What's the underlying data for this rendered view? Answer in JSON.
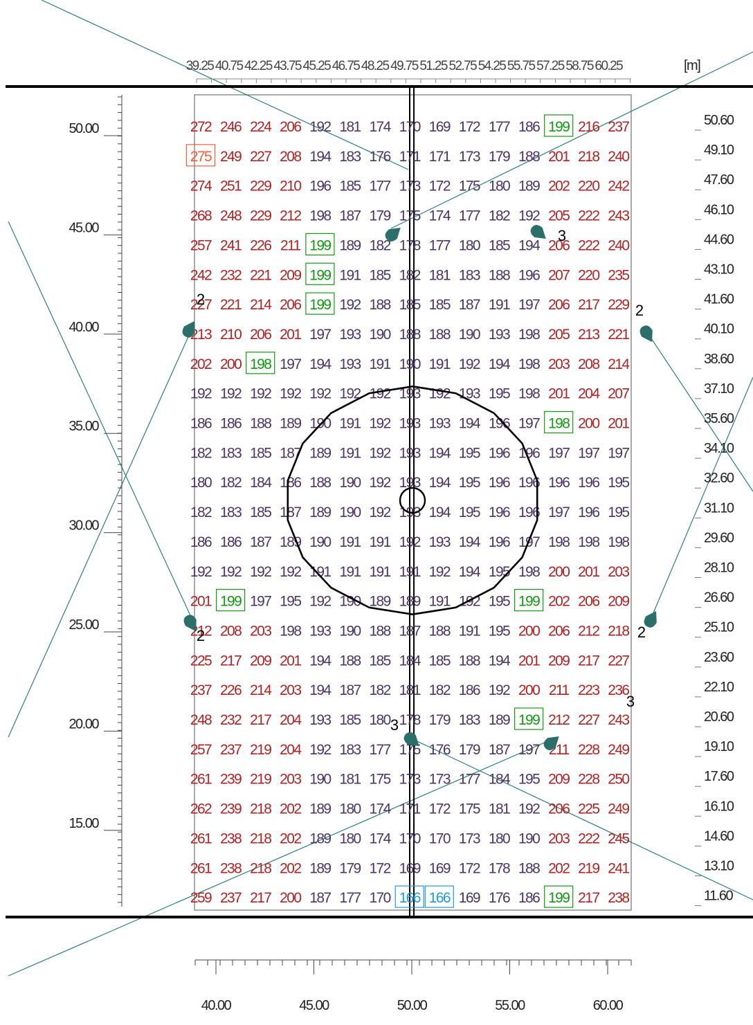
{
  "unit_label": "[m]",
  "top_scale_labels": [
    "39.25",
    "40.75",
    "42.25",
    "43.75",
    "45.25",
    "46.75",
    "48.25",
    "49.75",
    "51.25",
    "52.75",
    "54.25",
    "55.75",
    "57.25",
    "58.75",
    "60.25"
  ],
  "left_scale_labels": [
    "50.00",
    "45.00",
    "40.00",
    "35.00",
    "30.00",
    "25.00",
    "20.00",
    "15.00"
  ],
  "right_scale_labels": [
    "50.60",
    "49.10",
    "47.60",
    "46.10",
    "44.60",
    "43.10",
    "41.60",
    "40.10",
    "38.60",
    "37.10",
    "35.60",
    "34.10",
    "32.60",
    "31.10",
    "29.60",
    "28.10",
    "26.60",
    "25.10",
    "23.60",
    "22.10",
    "20.60",
    "19.10",
    "17.60",
    "16.10",
    "14.60",
    "13.10",
    "11.60"
  ],
  "bottom_scale_labels": [
    "40.00",
    "45.00",
    "50.00",
    "55.00",
    "60.00"
  ],
  "colors": {
    "high": "#b22222",
    "mid": "#4b3566",
    "max_box": "#ff5a36",
    "min_box": "#1e9be0",
    "special_box": "#119911",
    "luminaire": "#2b6f6a",
    "beam": "#2b7f7a"
  },
  "luminaire_labels": [
    {
      "id": "lum-top-center",
      "label": ""
    },
    {
      "id": "lum-top-right",
      "label": "3"
    },
    {
      "id": "lum-left-upper",
      "label": "2"
    },
    {
      "id": "lum-right-upper",
      "label": "2"
    },
    {
      "id": "lum-left-lower",
      "label": "2"
    },
    {
      "id": "lum-right-lower",
      "label": "2"
    },
    {
      "id": "lum-bottom-center",
      "label": "3"
    },
    {
      "id": "lum-bottom-right",
      "label": "3"
    }
  ],
  "grid": {
    "rows": [
      [
        272,
        246,
        224,
        206,
        192,
        181,
        174,
        170,
        169,
        172,
        177,
        186,
        199,
        216,
        237
      ],
      [
        275,
        249,
        227,
        208,
        194,
        183,
        176,
        171,
        171,
        173,
        179,
        188,
        201,
        218,
        240
      ],
      [
        274,
        251,
        229,
        210,
        196,
        185,
        177,
        173,
        172,
        175,
        180,
        189,
        202,
        220,
        242
      ],
      [
        268,
        248,
        229,
        212,
        198,
        187,
        179,
        175,
        174,
        177,
        182,
        192,
        205,
        222,
        243
      ],
      [
        257,
        241,
        226,
        211,
        199,
        189,
        182,
        178,
        177,
        180,
        185,
        194,
        206,
        222,
        240
      ],
      [
        242,
        232,
        221,
        209,
        199,
        191,
        185,
        182,
        181,
        183,
        188,
        196,
        207,
        220,
        235
      ],
      [
        227,
        221,
        214,
        206,
        199,
        192,
        188,
        185,
        185,
        187,
        191,
        197,
        206,
        217,
        229
      ],
      [
        213,
        210,
        206,
        201,
        197,
        193,
        190,
        188,
        188,
        190,
        193,
        198,
        205,
        213,
        221
      ],
      [
        202,
        200,
        198,
        197,
        194,
        193,
        191,
        190,
        191,
        192,
        194,
        198,
        203,
        208,
        214
      ],
      [
        192,
        192,
        192,
        192,
        192,
        192,
        192,
        193,
        192,
        193,
        195,
        198,
        201,
        204,
        207
      ],
      [
        186,
        186,
        188,
        189,
        190,
        191,
        192,
        193,
        193,
        194,
        196,
        197,
        198,
        200,
        201
      ],
      [
        182,
        183,
        185,
        187,
        189,
        191,
        192,
        193,
        194,
        195,
        196,
        196,
        197,
        197,
        197
      ],
      [
        180,
        182,
        184,
        186,
        188,
        190,
        192,
        193,
        194,
        195,
        196,
        196,
        196,
        196,
        195
      ],
      [
        182,
        183,
        185,
        187,
        189,
        190,
        192,
        193,
        194,
        195,
        196,
        196,
        197,
        196,
        195
      ],
      [
        186,
        186,
        187,
        189,
        190,
        191,
        191,
        192,
        193,
        194,
        196,
        197,
        198,
        198,
        198
      ],
      [
        192,
        192,
        192,
        192,
        191,
        191,
        191,
        191,
        192,
        194,
        195,
        198,
        200,
        201,
        203
      ],
      [
        201,
        199,
        197,
        195,
        192,
        190,
        189,
        189,
        191,
        192,
        195,
        199,
        202,
        206,
        209
      ],
      [
        212,
        208,
        203,
        198,
        193,
        190,
        188,
        187,
        188,
        191,
        195,
        200,
        206,
        212,
        218
      ],
      [
        225,
        217,
        209,
        201,
        194,
        188,
        185,
        184,
        185,
        188,
        194,
        201,
        209,
        217,
        227
      ],
      [
        237,
        226,
        214,
        203,
        194,
        187,
        182,
        181,
        182,
        186,
        192,
        200,
        211,
        223,
        236
      ],
      [
        248,
        232,
        217,
        204,
        193,
        185,
        180,
        178,
        179,
        183,
        189,
        199,
        212,
        227,
        243
      ],
      [
        257,
        237,
        219,
        204,
        192,
        183,
        177,
        175,
        176,
        179,
        187,
        197,
        211,
        228,
        249
      ],
      [
        261,
        239,
        219,
        203,
        190,
        181,
        175,
        173,
        173,
        177,
        184,
        195,
        209,
        228,
        250
      ],
      [
        262,
        239,
        218,
        202,
        189,
        180,
        174,
        171,
        172,
        175,
        181,
        192,
        206,
        225,
        249
      ],
      [
        261,
        238,
        218,
        202,
        189,
        180,
        174,
        170,
        170,
        173,
        180,
        190,
        203,
        222,
        245
      ],
      [
        261,
        238,
        218,
        202,
        189,
        179,
        172,
        169,
        169,
        172,
        178,
        188,
        202,
        219,
        241
      ],
      [
        259,
        237,
        217,
        200,
        187,
        177,
        170,
        166,
        166,
        169,
        176,
        186,
        199,
        217,
        238
      ]
    ],
    "max_cells": [
      [
        1,
        0
      ]
    ],
    "min_cells": [
      [
        26,
        7
      ],
      [
        26,
        8
      ]
    ],
    "special_cells": [
      [
        0,
        12
      ],
      [
        4,
        4
      ],
      [
        5,
        4
      ],
      [
        6,
        4
      ],
      [
        8,
        2
      ],
      [
        10,
        12
      ],
      [
        16,
        1
      ],
      [
        16,
        11
      ],
      [
        20,
        11
      ],
      [
        26,
        12
      ]
    ]
  }
}
